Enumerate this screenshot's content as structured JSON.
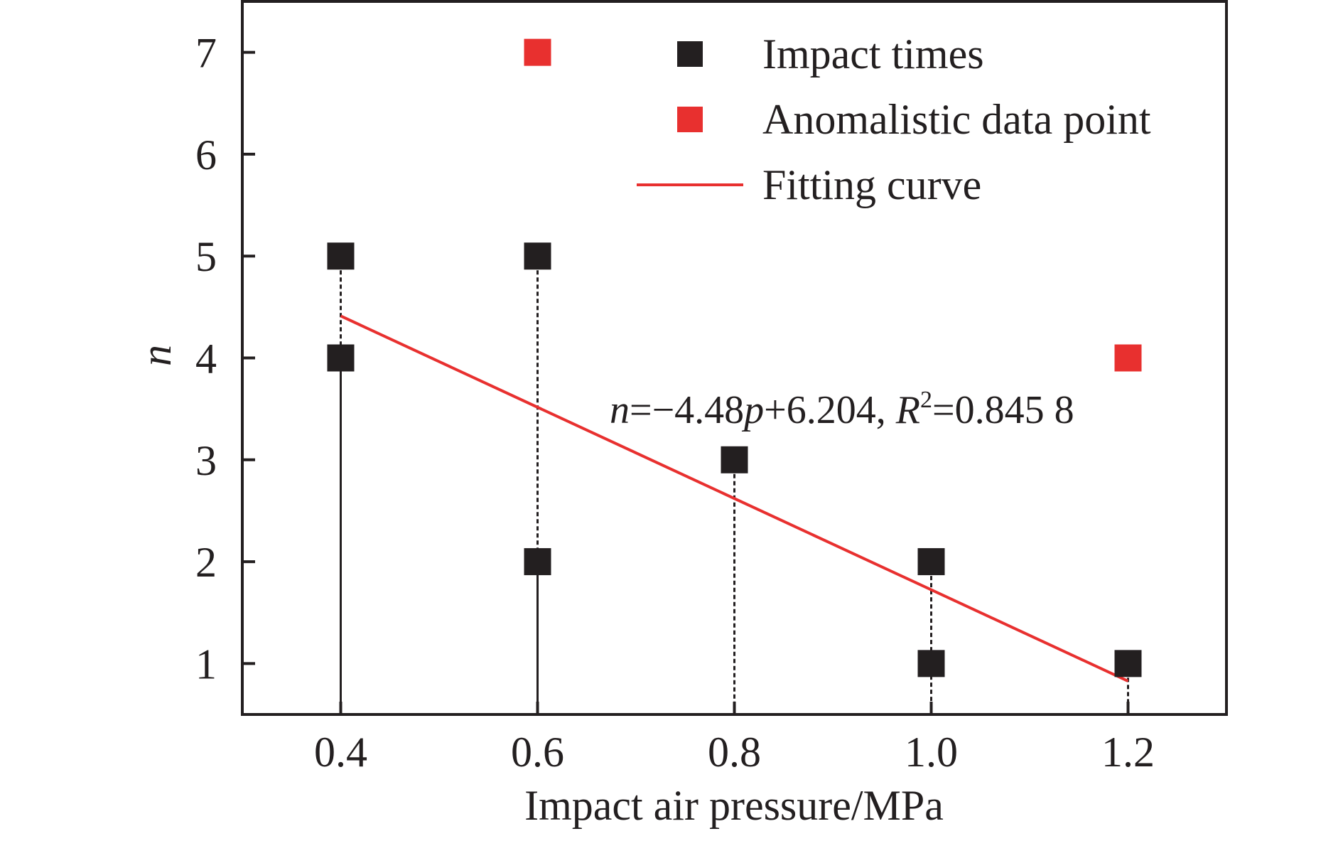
{
  "chart_data": {
    "type": "scatter",
    "xlabel": "Impact air pressure/MPa",
    "ylabel": "n",
    "xlim": [
      0.3,
      1.3
    ],
    "ylim": [
      0.5,
      7.5
    ],
    "x_ticks": [
      0.4,
      0.6,
      0.8,
      1.0,
      1.2
    ],
    "x_tick_labels": [
      "0.4",
      "0.6",
      "0.8",
      "1.0",
      "1.2"
    ],
    "y_ticks": [
      1,
      2,
      3,
      4,
      5,
      6,
      7
    ],
    "y_tick_labels": [
      "1",
      "2",
      "3",
      "4",
      "5",
      "6",
      "7"
    ],
    "grid": false,
    "legend_position": "top-right",
    "series": [
      {
        "name": "Impact times",
        "color": "#231f20",
        "marker": "square",
        "points": [
          [
            0.4,
            5
          ],
          [
            0.4,
            4
          ],
          [
            0.6,
            5
          ],
          [
            0.6,
            2
          ],
          [
            0.8,
            3
          ],
          [
            1.0,
            2
          ],
          [
            1.0,
            1
          ],
          [
            1.2,
            1
          ]
        ]
      },
      {
        "name": "Anomalistic data point",
        "color": "#e8302f",
        "marker": "square",
        "points": [
          [
            0.6,
            7
          ],
          [
            1.2,
            4
          ]
        ]
      },
      {
        "name": "Fitting curve",
        "color": "#e8302f",
        "type": "line",
        "slope": -4.48,
        "intercept": 6.204,
        "x_range": [
          0.4,
          1.2
        ]
      }
    ],
    "drop_lines": [
      {
        "x": 0.4,
        "top": 5,
        "solid_below": 4
      },
      {
        "x": 0.6,
        "top": 5,
        "solid_below": 2
      },
      {
        "x": 0.8,
        "top": 3,
        "solid_below": null
      },
      {
        "x": 1.0,
        "top": 2,
        "solid_below": null
      },
      {
        "x": 1.2,
        "top": 1,
        "solid_below": null
      }
    ],
    "annotation": {
      "n": "n",
      "eq_mid": "=−4.48",
      "p": "p",
      "eq_tail": "+6.204, ",
      "R": "R",
      "sup": "2",
      "r2_value": "=0.845 8"
    }
  }
}
